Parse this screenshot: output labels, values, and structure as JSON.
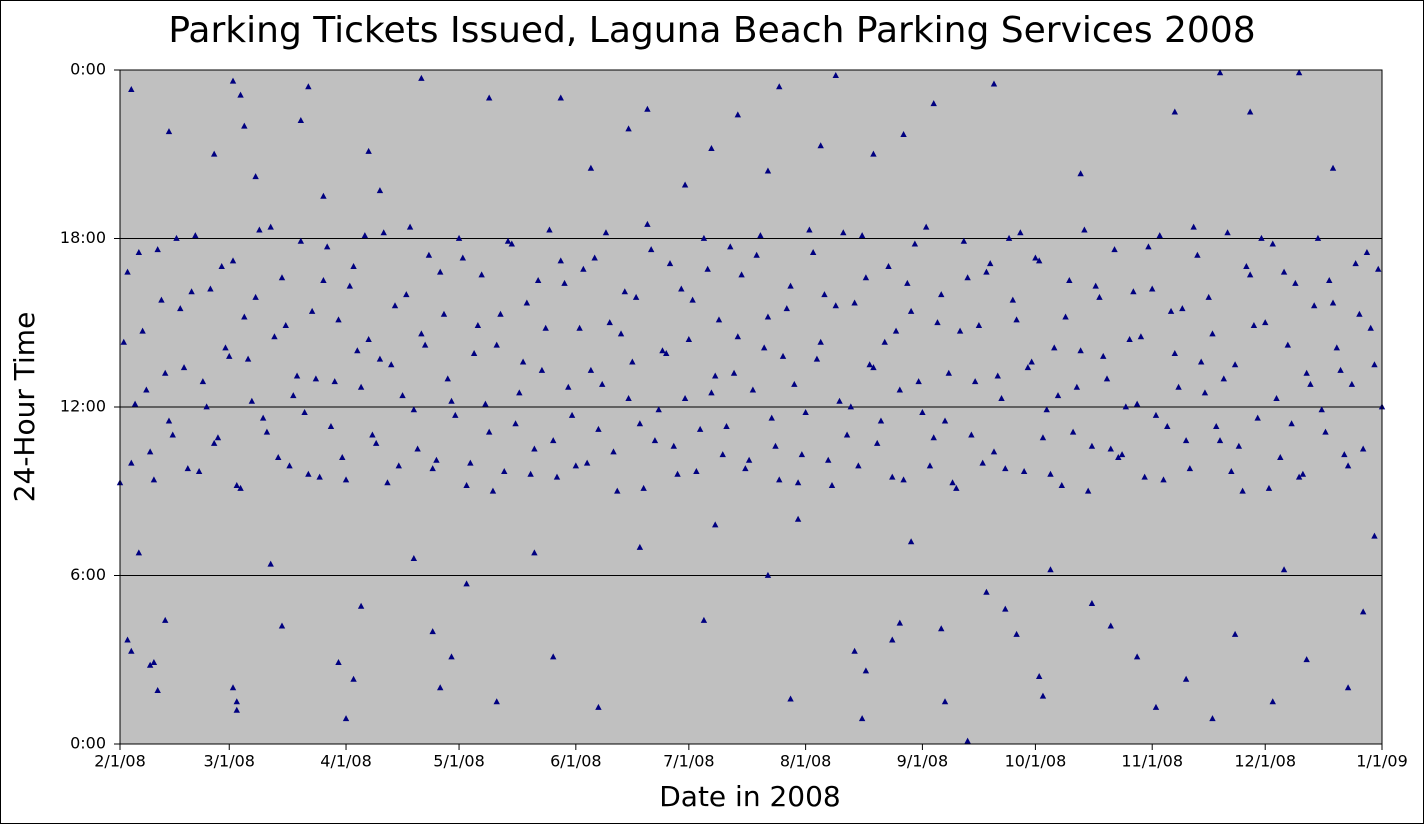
{
  "chart_data": {
    "type": "scatter",
    "title": "Parking Tickets Issued, Laguna Beach Parking Services 2008",
    "x_label": "Date in 2008",
    "y_label": "24-Hour Time",
    "marker": "triangle",
    "grid": true,
    "xlim": [
      0,
      335
    ],
    "xticks": [
      {
        "value": 0,
        "label": "2/1/08"
      },
      {
        "value": 29,
        "label": "3/1/08"
      },
      {
        "value": 60,
        "label": "4/1/08"
      },
      {
        "value": 90,
        "label": "5/1/08"
      },
      {
        "value": 121,
        "label": "6/1/08"
      },
      {
        "value": 151,
        "label": "7/1/08"
      },
      {
        "value": 182,
        "label": "8/1/08"
      },
      {
        "value": 213,
        "label": "9/1/08"
      },
      {
        "value": 243,
        "label": "10/1/08"
      },
      {
        "value": 274,
        "label": "11/1/08"
      },
      {
        "value": 304,
        "label": "12/1/08"
      },
      {
        "value": 335,
        "label": "1/1/09"
      }
    ],
    "ylim": [
      0,
      24
    ],
    "yticks": [
      {
        "value": 0,
        "label": "0:00"
      },
      {
        "value": 6,
        "label": "6:00"
      },
      {
        "value": 12,
        "label": "12:00"
      },
      {
        "value": 18,
        "label": "18:00"
      },
      {
        "value": 24,
        "label": "0:00"
      }
    ],
    "x": [
      0,
      2,
      4,
      6,
      8,
      10,
      12,
      14,
      16,
      18,
      20,
      22,
      24,
      26,
      28,
      30,
      32,
      34,
      36,
      38,
      40,
      42,
      44,
      46,
      48,
      50,
      52,
      54,
      56,
      58,
      60,
      62,
      64,
      66,
      68,
      70,
      72,
      74,
      76,
      78,
      80,
      82,
      84,
      86,
      88,
      90,
      92,
      94,
      96,
      98,
      100,
      102,
      104,
      106,
      108,
      110,
      112,
      114,
      116,
      118,
      120,
      122,
      124,
      126,
      128,
      130,
      132,
      134,
      136,
      138,
      140,
      142,
      144,
      146,
      148,
      150,
      152,
      154,
      156,
      158,
      160,
      162,
      164,
      166,
      168,
      170,
      172,
      174,
      176,
      178,
      180,
      182,
      184,
      186,
      188,
      190,
      192,
      194,
      196,
      198,
      200,
      202,
      204,
      206,
      208,
      210,
      212,
      214,
      216,
      218,
      220,
      222,
      224,
      226,
      228,
      230,
      232,
      234,
      236,
      238,
      240,
      242,
      244,
      246,
      248,
      250,
      252,
      254,
      256,
      258,
      260,
      262,
      264,
      266,
      268,
      270,
      272,
      274,
      276,
      278,
      280,
      282,
      284,
      286,
      288,
      290,
      292,
      294,
      296,
      298,
      300,
      302,
      304,
      306,
      308,
      310,
      312,
      314,
      316,
      318,
      320,
      322,
      324,
      326,
      328,
      330,
      332,
      334,
      1,
      3,
      5,
      7,
      9,
      11,
      13,
      15,
      17,
      19,
      21,
      23,
      25,
      27,
      29,
      31,
      33,
      35,
      37,
      39,
      41,
      43,
      45,
      47,
      49,
      51,
      53,
      55,
      57,
      59,
      61,
      63,
      65,
      67,
      69,
      71,
      73,
      75,
      77,
      79,
      81,
      83,
      85,
      87,
      89,
      91,
      93,
      95,
      97,
      99,
      101,
      103,
      105,
      107,
      109,
      111,
      113,
      115,
      117,
      119,
      121,
      123,
      125,
      127,
      129,
      131,
      133,
      135,
      137,
      139,
      141,
      143,
      145,
      147,
      149,
      151,
      153,
      155,
      157,
      159,
      161,
      163,
      165,
      167,
      169,
      171,
      173,
      175,
      177,
      179,
      181,
      183,
      185,
      187,
      189,
      191,
      193,
      195,
      197,
      199,
      201,
      203,
      205,
      207,
      209,
      211,
      213,
      215,
      217,
      219,
      221,
      223,
      225,
      227,
      229,
      231,
      233,
      235,
      237,
      239,
      241,
      243,
      245,
      247,
      249,
      251,
      253,
      255,
      257,
      259,
      261,
      263,
      265,
      267,
      269,
      271,
      273,
      275,
      277,
      279,
      281,
      283,
      285,
      287,
      289,
      291,
      293,
      295,
      297,
      299,
      301,
      303,
      305,
      307,
      309,
      311,
      313,
      315,
      317,
      319,
      321,
      323,
      325,
      327,
      329,
      331,
      333,
      335,
      2,
      3,
      5,
      8,
      9,
      10,
      12,
      13,
      3,
      25,
      30,
      32,
      33,
      30,
      31,
      31,
      36,
      40,
      43,
      48,
      50,
      54,
      60,
      62,
      64,
      58,
      66,
      69,
      78,
      80,
      83,
      85,
      88,
      92,
      98,
      100,
      110,
      117,
      115,
      125,
      127,
      135,
      140,
      138,
      150,
      155,
      157,
      158,
      164,
      172,
      172,
      178,
      175,
      180,
      190,
      186,
      195,
      197,
      200,
      198,
      205,
      207,
      208,
      210,
      216,
      218,
      219,
      225,
      232,
      230,
      235,
      238,
      244,
      245,
      247,
      255,
      258,
      263,
      270,
      275,
      280,
      283,
      290,
      292,
      296,
      300,
      306,
      309,
      313,
      315,
      322,
      326,
      330,
      333
    ],
    "series": [
      {
        "color": "#000080",
        "values": [
          9.3,
          16.8,
          12.1,
          14.7,
          10.4,
          17.6,
          13.2,
          11.0,
          15.5,
          9.8,
          18.1,
          12.9,
          16.2,
          10.9,
          14.1,
          17.2,
          9.1,
          13.7,
          15.9,
          11.6,
          18.4,
          10.2,
          14.9,
          12.4,
          17.9,
          9.6,
          13.0,
          16.5,
          11.3,
          15.1,
          9.4,
          17.0,
          12.7,
          14.4,
          10.7,
          18.2,
          13.5,
          9.9,
          16.0,
          11.9,
          14.6,
          17.4,
          10.1,
          15.3,
          12.2,
          18.0,
          9.2,
          13.9,
          16.7,
          11.1,
          14.2,
          9.7,
          17.8,
          12.5,
          15.7,
          10.5,
          13.3,
          18.3,
          9.5,
          16.4,
          11.7,
          14.8,
          10.0,
          17.3,
          12.8,
          15.0,
          9.0,
          16.1,
          13.6,
          11.4,
          18.5,
          10.8,
          14.0,
          17.1,
          9.6,
          12.3,
          15.8,
          11.2,
          16.9,
          13.1,
          10.3,
          17.7,
          14.5,
          9.8,
          12.6,
          18.1,
          15.2,
          10.6,
          13.8,
          16.3,
          9.3,
          11.8,
          17.5,
          14.3,
          10.1,
          15.6,
          18.2,
          12.0,
          9.9,
          16.6,
          13.4,
          11.5,
          17.0,
          14.7,
          9.4,
          15.4,
          12.9,
          18.4,
          10.9,
          16.0,
          13.2,
          9.1,
          17.9,
          11.0,
          14.9,
          16.8,
          10.4,
          12.3,
          18.0,
          15.1,
          9.7,
          13.6,
          17.2,
          11.9,
          14.1,
          9.2,
          16.5,
          12.7,
          18.3,
          10.6,
          15.9,
          13.0,
          17.6,
          10.3,
          14.4,
          12.1,
          9.5,
          16.2,
          18.1,
          11.3,
          13.9,
          15.5,
          9.8,
          17.4,
          12.5,
          14.6,
          10.8,
          18.2,
          13.5,
          9.0,
          16.7,
          11.6,
          15.0,
          17.8,
          10.2,
          14.2,
          16.4,
          9.6,
          12.8,
          18.0,
          11.1,
          15.7,
          13.3,
          9.9,
          17.1,
          10.5,
          14.8,
          16.9,
          14.3,
          10.0,
          17.5,
          12.6,
          9.4,
          15.8,
          11.5,
          18.0,
          13.4,
          16.1,
          9.7,
          12.0,
          10.7,
          17.0,
          13.8,
          9.2,
          15.2,
          12.2,
          18.3,
          11.1,
          14.5,
          16.6,
          9.9,
          13.1,
          11.8,
          15.4,
          9.5,
          17.7,
          12.9,
          10.2,
          16.3,
          14.0,
          18.1,
          11.0,
          13.7,
          9.3,
          15.6,
          12.4,
          18.4,
          10.5,
          14.2,
          9.8,
          16.8,
          13.0,
          11.7,
          17.3,
          10.0,
          14.9,
          12.1,
          9.0,
          15.3,
          17.9,
          11.4,
          13.6,
          9.6,
          16.5,
          14.8,
          10.8,
          17.2,
          12.7,
          9.9,
          16.9,
          13.3,
          11.2,
          18.2,
          10.4,
          14.6,
          12.3,
          15.9,
          9.1,
          17.6,
          11.9,
          13.9,
          10.6,
          16.2,
          14.4,
          9.7,
          18.0,
          12.5,
          15.1,
          11.3,
          13.2,
          16.7,
          10.1,
          17.4,
          14.1,
          11.6,
          9.4,
          15.5,
          12.8,
          10.3,
          18.3,
          13.7,
          16.0,
          9.2,
          12.2,
          11.0,
          15.7,
          18.1,
          13.5,
          10.7,
          14.3,
          9.5,
          12.6,
          16.4,
          17.8,
          11.8,
          9.9,
          15.0,
          11.5,
          9.3,
          14.7,
          16.6,
          12.9,
          10.0,
          17.1,
          13.1,
          9.8,
          15.8,
          18.2,
          13.4,
          17.3,
          10.9,
          9.6,
          12.4,
          15.2,
          11.1,
          14.0,
          9.0,
          16.3,
          13.8,
          10.5,
          10.2,
          12.0,
          16.1,
          14.5,
          17.7,
          11.7,
          9.4,
          15.4,
          12.7,
          10.8,
          18.4,
          13.6,
          15.9,
          11.3,
          13.0,
          9.7,
          10.6,
          17.0,
          14.9,
          18.0,
          9.1,
          12.3,
          16.8,
          11.4,
          9.5,
          13.2,
          15.6,
          11.9,
          16.5,
          14.1,
          10.3,
          12.8,
          15.3,
          17.5,
          13.5,
          12.0,
          3.7,
          3.3,
          6.8,
          2.8,
          2.9,
          1.9,
          4.4,
          21.8,
          23.3,
          21.0,
          23.6,
          23.1,
          22.0,
          2.0,
          1.2,
          1.5,
          20.2,
          6.4,
          4.2,
          22.2,
          23.4,
          19.5,
          0.9,
          2.3,
          4.9,
          2.9,
          21.1,
          19.7,
          6.6,
          23.7,
          4.0,
          2.0,
          3.1,
          5.7,
          23.0,
          1.5,
          6.8,
          23.0,
          3.1,
          20.5,
          1.3,
          21.9,
          22.6,
          7.0,
          19.9,
          4.4,
          21.2,
          7.8,
          22.4,
          20.4,
          6.0,
          1.6,
          23.4,
          8.0,
          23.8,
          21.3,
          3.3,
          0.9,
          21.0,
          2.6,
          3.7,
          4.3,
          21.7,
          7.2,
          22.8,
          4.1,
          1.5,
          0.1,
          23.5,
          5.4,
          4.8,
          3.9,
          2.4,
          1.7,
          6.2,
          20.3,
          5.0,
          4.2,
          3.1,
          1.3,
          22.5,
          2.3,
          0.9,
          23.9,
          3.9,
          22.5,
          1.5,
          6.2,
          23.9,
          3.0,
          20.5,
          2.0,
          4.7,
          7.4
        ]
      }
    ]
  }
}
